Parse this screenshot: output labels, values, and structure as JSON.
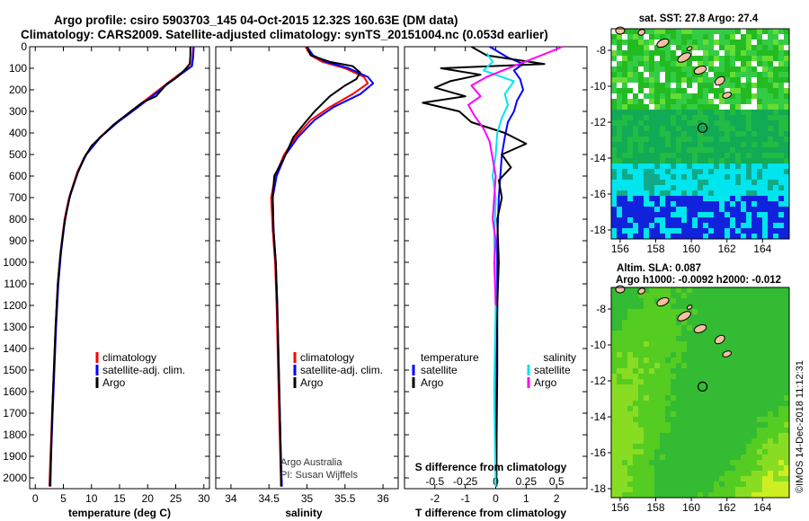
{
  "header": {
    "title_line1": "Argo profile: csiro 5903703_145 04-Oct-2015 12.32S 160.63E (DM data)",
    "title_line2": "Climatology: CARS2009. Satellite-adjusted climatology: synTS_20151004.nc (0.053d earlier)"
  },
  "colors": {
    "climatology": "#ff0000",
    "satellite": "#0000ff",
    "argo": "#000000",
    "satellite_salinity": "#00e5ee",
    "argo_salinity": "#ff00ff"
  },
  "legend": {
    "climatology": "climatology",
    "satellite_adj": "satellite-adj. clim.",
    "argo": "Argo",
    "temperature": "temperature",
    "salinity": "salinity",
    "satellite": "satellite"
  },
  "credits": {
    "line1": "Argo Australia",
    "line2": "PI: Susan Wijffels"
  },
  "stamp": "©IMOS 14-Dec-2018 11:12:31",
  "chart_data": [
    {
      "type": "line",
      "name": "temperature-profile",
      "xlabel": "temperature (deg C)",
      "ylabel": "",
      "xlim": [
        -1,
        31
      ],
      "ylim": [
        2050,
        0
      ],
      "xticks": [
        0,
        5,
        10,
        15,
        20,
        25,
        30
      ],
      "yticks": [
        0,
        100,
        200,
        300,
        400,
        500,
        600,
        700,
        800,
        900,
        1000,
        1100,
        1200,
        1300,
        1400,
        1500,
        1600,
        1700,
        1800,
        1900,
        2000
      ],
      "series": [
        {
          "name": "climatology",
          "color": "#ff0000",
          "points": [
            [
              28.1,
              0
            ],
            [
              28.0,
              50
            ],
            [
              27.8,
              90
            ],
            [
              25.5,
              130
            ],
            [
              23.0,
              180
            ],
            [
              20.5,
              230
            ],
            [
              17.5,
              290
            ],
            [
              14.5,
              350
            ],
            [
              11.5,
              420
            ],
            [
              9.0,
              500
            ],
            [
              7.5,
              580
            ],
            [
              6.0,
              700
            ],
            [
              5.2,
              800
            ],
            [
              4.5,
              950
            ],
            [
              4.0,
              1100
            ],
            [
              3.6,
              1300
            ],
            [
              3.3,
              1500
            ],
            [
              3.0,
              1700
            ],
            [
              2.7,
              1900
            ],
            [
              2.5,
              2040
            ]
          ]
        },
        {
          "name": "satellite-adj. clim.",
          "color": "#0000ff",
          "points": [
            [
              28.2,
              0
            ],
            [
              28.1,
              50
            ],
            [
              27.9,
              90
            ],
            [
              25.8,
              130
            ],
            [
              23.2,
              180
            ],
            [
              20.8,
              230
            ],
            [
              17.8,
              290
            ],
            [
              14.7,
              350
            ],
            [
              11.6,
              420
            ],
            [
              9.1,
              500
            ],
            [
              7.6,
              580
            ],
            [
              6.1,
              700
            ],
            [
              5.3,
              800
            ],
            [
              4.6,
              950
            ],
            [
              4.1,
              1100
            ],
            [
              3.7,
              1300
            ],
            [
              3.4,
              1500
            ],
            [
              3.1,
              1700
            ],
            [
              2.8,
              1900
            ],
            [
              2.6,
              2040
            ]
          ]
        },
        {
          "name": "Argo",
          "color": "#000000",
          "points": [
            [
              27.6,
              0
            ],
            [
              27.6,
              40
            ],
            [
              27.5,
              80
            ],
            [
              26.5,
              110
            ],
            [
              24.8,
              150
            ],
            [
              23.5,
              170
            ],
            [
              21.5,
              230
            ],
            [
              19.0,
              260
            ],
            [
              16.5,
              310
            ],
            [
              14.0,
              360
            ],
            [
              12.0,
              410
            ],
            [
              10.0,
              460
            ],
            [
              8.6,
              520
            ],
            [
              7.5,
              590
            ],
            [
              6.3,
              680
            ],
            [
              5.6,
              760
            ],
            [
              5.0,
              850
            ],
            [
              4.4,
              980
            ],
            [
              4.0,
              1100
            ],
            [
              3.6,
              1300
            ],
            [
              3.3,
              1500
            ],
            [
              3.0,
              1700
            ],
            [
              2.8,
              1900
            ],
            [
              2.7,
              2040
            ]
          ]
        }
      ]
    },
    {
      "type": "line",
      "name": "salinity-profile",
      "xlabel": "salinity",
      "ylabel": "",
      "xlim": [
        33.8,
        36.2
      ],
      "ylim": [
        2050,
        0
      ],
      "xticks": [
        34,
        34.5,
        35,
        35.5,
        36
      ],
      "yticks": [
        0,
        100,
        200,
        300,
        400,
        500,
        600,
        700,
        800,
        900,
        1000,
        1100,
        1200,
        1300,
        1400,
        1500,
        1600,
        1700,
        1800,
        1900,
        2000
      ],
      "series": [
        {
          "name": "climatology",
          "color": "#ff0000",
          "points": [
            [
              34.98,
              0
            ],
            [
              35.05,
              40
            ],
            [
              35.2,
              70
            ],
            [
              35.5,
              100
            ],
            [
              35.75,
              140
            ],
            [
              35.8,
              170
            ],
            [
              35.6,
              220
            ],
            [
              35.3,
              280
            ],
            [
              35.05,
              340
            ],
            [
              34.85,
              420
            ],
            [
              34.7,
              500
            ],
            [
              34.58,
              600
            ],
            [
              34.53,
              700
            ],
            [
              34.55,
              850
            ],
            [
              34.58,
              1000
            ],
            [
              34.6,
              1200
            ],
            [
              34.62,
              1500
            ],
            [
              34.64,
              1800
            ],
            [
              34.66,
              2040
            ]
          ]
        },
        {
          "name": "satellite-adj. clim.",
          "color": "#0000ff",
          "points": [
            [
              35.0,
              0
            ],
            [
              35.08,
              40
            ],
            [
              35.25,
              70
            ],
            [
              35.55,
              100
            ],
            [
              35.8,
              140
            ],
            [
              35.87,
              170
            ],
            [
              35.7,
              220
            ],
            [
              35.35,
              280
            ],
            [
              35.1,
              340
            ],
            [
              34.88,
              420
            ],
            [
              34.72,
              500
            ],
            [
              34.6,
              600
            ],
            [
              34.55,
              700
            ],
            [
              34.56,
              850
            ],
            [
              34.59,
              1000
            ],
            [
              34.61,
              1200
            ],
            [
              34.63,
              1500
            ],
            [
              34.65,
              1800
            ],
            [
              34.67,
              2040
            ]
          ]
        },
        {
          "name": "Argo",
          "color": "#000000",
          "points": [
            [
              35.0,
              0
            ],
            [
              35.05,
              40
            ],
            [
              35.3,
              70
            ],
            [
              35.6,
              90
            ],
            [
              35.7,
              120
            ],
            [
              35.65,
              150
            ],
            [
              35.5,
              180
            ],
            [
              35.3,
              230
            ],
            [
              35.1,
              300
            ],
            [
              34.98,
              350
            ],
            [
              34.82,
              420
            ],
            [
              34.72,
              500
            ],
            [
              34.57,
              600
            ],
            [
              34.55,
              700
            ],
            [
              34.56,
              850
            ],
            [
              34.59,
              1000
            ],
            [
              34.61,
              1200
            ],
            [
              34.63,
              1500
            ],
            [
              34.65,
              1800
            ],
            [
              34.66,
              2040
            ]
          ]
        }
      ]
    },
    {
      "type": "line",
      "name": "difference-profile",
      "xlabel": "T difference from climatology",
      "x2label": "S difference from climatology",
      "ylabel": "",
      "xlim": [
        -3,
        3
      ],
      "ylim": [
        2050,
        0
      ],
      "xticks": [
        -2,
        -1,
        0,
        1,
        2
      ],
      "x2ticks": [
        -0.5,
        -0.25,
        0,
        0.25,
        0.5
      ],
      "x2ticklabels": [
        "-0.5",
        "-0.25",
        "0",
        "0.25",
        "0.5"
      ],
      "yticks": [
        0,
        100,
        200,
        300,
        400,
        500,
        600,
        700,
        800,
        900,
        1000,
        1100,
        1200,
        1300,
        1400,
        1500,
        1600,
        1700,
        1800,
        1900,
        2000
      ],
      "series": [
        {
          "name": "T satellite",
          "color": "#0000ff",
          "points": [
            [
              -0.2,
              0
            ],
            [
              0.4,
              50
            ],
            [
              0.9,
              80
            ],
            [
              0.6,
              110
            ],
            [
              0.8,
              150
            ],
            [
              0.9,
              200
            ],
            [
              0.7,
              250
            ],
            [
              0.6,
              300
            ],
            [
              0.4,
              350
            ],
            [
              0.3,
              420
            ],
            [
              0.2,
              500
            ],
            [
              0.15,
              600
            ],
            [
              0.1,
              700
            ],
            [
              0.05,
              900
            ],
            [
              0.05,
              1200
            ],
            [
              0.02,
              1600
            ],
            [
              0.02,
              2040
            ]
          ]
        },
        {
          "name": "T Argo",
          "color": "#000000",
          "points": [
            [
              -0.8,
              0
            ],
            [
              -0.3,
              40
            ],
            [
              1.6,
              80
            ],
            [
              -1.8,
              100
            ],
            [
              -0.5,
              130
            ],
            [
              -1.5,
              160
            ],
            [
              -2.0,
              190
            ],
            [
              -1.0,
              230
            ],
            [
              -2.4,
              260
            ],
            [
              -1.2,
              300
            ],
            [
              -0.8,
              350
            ],
            [
              0.3,
              400
            ],
            [
              1.0,
              450
            ],
            [
              0.2,
              500
            ],
            [
              0.5,
              560
            ],
            [
              0.1,
              620
            ],
            [
              0.2,
              700
            ],
            [
              0.05,
              800
            ],
            [
              0.1,
              1000
            ],
            [
              0.05,
              1200
            ],
            [
              0.05,
              1500
            ],
            [
              0.03,
              1800
            ],
            [
              0.02,
              2040
            ]
          ]
        },
        {
          "name": "S satellite",
          "color": "#00e5ee",
          "points": [
            [
              -0.3,
              30
            ],
            [
              -0.1,
              70
            ],
            [
              -0.4,
              110
            ],
            [
              0.6,
              160
            ],
            [
              0.3,
              220
            ],
            [
              0.4,
              270
            ],
            [
              0.2,
              330
            ],
            [
              0.05,
              400
            ],
            [
              0.0,
              500
            ],
            [
              -0.1,
              600
            ],
            [
              0.0,
              700
            ],
            [
              -0.05,
              900
            ],
            [
              0.0,
              1200
            ],
            [
              -0.05,
              1600
            ],
            [
              0.0,
              2040
            ]
          ]
        },
        {
          "name": "S Argo",
          "color": "#ff00ff",
          "points": [
            [
              2.2,
              0
            ],
            [
              1.5,
              40
            ],
            [
              0.6,
              90
            ],
            [
              -0.3,
              140
            ],
            [
              -0.8,
              180
            ],
            [
              -0.5,
              230
            ],
            [
              -0.9,
              270
            ],
            [
              -0.7,
              320
            ],
            [
              -0.4,
              380
            ],
            [
              -0.2,
              440
            ],
            [
              -0.1,
              520
            ],
            [
              0.0,
              600
            ],
            [
              -0.05,
              700
            ],
            [
              -0.1,
              800
            ],
            [
              0.0,
              900
            ],
            [
              -0.05,
              1000
            ],
            [
              0.0,
              1200
            ]
          ]
        }
      ]
    },
    {
      "type": "heatmap",
      "name": "sst-map",
      "title": "sat. SST: 27.8 Argo: 27.4",
      "xticks": [
        156,
        158,
        160,
        162,
        164
      ],
      "yticks": [
        -8,
        -10,
        -12,
        -14,
        -16,
        -18
      ],
      "xlim": [
        155.5,
        165.5
      ],
      "ylim": [
        -18.5,
        -6.8
      ],
      "argo_position": [
        160.63,
        -12.32
      ]
    },
    {
      "type": "heatmap",
      "name": "sla-map",
      "title": "Altim. SLA: 0.087",
      "subtitle": "Argo h1000: -0.0092 h2000: -0.012",
      "xticks": [
        156,
        158,
        160,
        162,
        164
      ],
      "yticks": [
        -8,
        -10,
        -12,
        -14,
        -16,
        -18
      ],
      "xlim": [
        155.5,
        165.5
      ],
      "ylim": [
        -18.5,
        -6.8
      ],
      "argo_position": [
        160.63,
        -12.32
      ]
    }
  ]
}
